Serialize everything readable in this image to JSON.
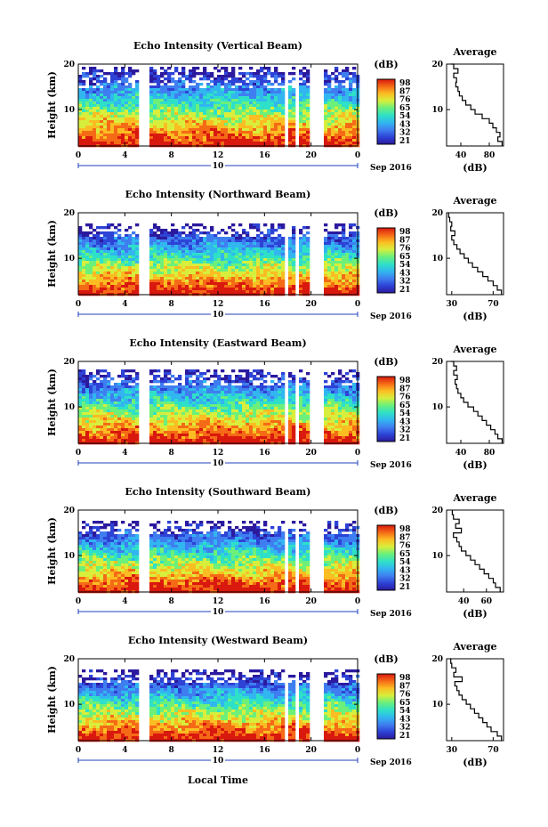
{
  "figure": {
    "xlabel_bottom": "Local Time",
    "date_label": "Sep 2016",
    "day_label": "10",
    "colorbar_unit": "(dB)",
    "colorbar_ticks": [
      "98",
      "87",
      "76",
      "65",
      "54",
      "43",
      "32",
      "21"
    ],
    "height_label": "Height (km)",
    "average_title": "Average",
    "average_xlabel": "(dB)",
    "colors": {
      "palette": [
        "#2b1a9e",
        "#2d43d6",
        "#3f7ef0",
        "#31b6f0",
        "#2ee0c8",
        "#6cf07a",
        "#d8ee3c",
        "#fbbd22",
        "#f56a16",
        "#d9180e"
      ],
      "axis": "#000000",
      "time_axis_marker": "#1f3fbf"
    }
  },
  "chart_data": [
    {
      "type": "heatmap",
      "title": "Echo Intensity (Vertical Beam)",
      "xlabel": "Local Time",
      "ylabel": "Height (km)",
      "xlim": [
        0,
        24
      ],
      "ylim": [
        2,
        20
      ],
      "xticks": [
        "0",
        "4",
        "8",
        "12",
        "16",
        "20",
        "0"
      ],
      "yticks": [
        "20",
        "10"
      ],
      "colorbar_range": [
        21,
        98
      ],
      "colorbar_ticks": [
        "98",
        "87",
        "76",
        "65",
        "54",
        "43",
        "32",
        "21"
      ],
      "data_gaps_hours": [
        [
          5.3,
          6.0
        ],
        [
          17.7,
          18.1
        ],
        [
          18.6,
          18.9
        ],
        [
          19.8,
          21.0
        ]
      ],
      "echo_top_km": 19.5,
      "average_profile": {
        "title": "Average",
        "xlabel": "(dB)",
        "xticks": [
          "40",
          "80"
        ],
        "xlim": [
          20,
          100
        ],
        "height_km": [
          2,
          3,
          4,
          5,
          6,
          7,
          8,
          9,
          10,
          11,
          12,
          13,
          14,
          15,
          16,
          17,
          18,
          19,
          20
        ],
        "db": [
          98,
          92,
          95,
          90,
          85,
          80,
          70,
          60,
          54,
          47,
          42,
          38,
          36,
          33,
          34,
          30,
          36,
          30,
          26
        ]
      }
    },
    {
      "type": "heatmap",
      "title": "Echo Intensity (Northward Beam)",
      "xlabel": "Local Time",
      "ylabel": "Height (km)",
      "xlim": [
        0,
        24
      ],
      "ylim": [
        2,
        20
      ],
      "xticks": [
        "0",
        "4",
        "8",
        "12",
        "16",
        "20",
        "0"
      ],
      "yticks": [
        "20",
        "10"
      ],
      "colorbar_range": [
        21,
        98
      ],
      "colorbar_ticks": [
        "98",
        "87",
        "76",
        "65",
        "54",
        "43",
        "32",
        "21"
      ],
      "data_gaps_hours": [
        [
          5.3,
          6.0
        ],
        [
          17.7,
          18.1
        ],
        [
          18.6,
          18.9
        ],
        [
          19.8,
          21.0
        ]
      ],
      "echo_top_km": 17.5,
      "average_profile": {
        "title": "Average",
        "xlabel": "(dB)",
        "xticks": [
          "30",
          "70"
        ],
        "xlim": [
          25,
          80
        ],
        "height_km": [
          2,
          3,
          4,
          5,
          6,
          7,
          8,
          9,
          10,
          11,
          12,
          13,
          14,
          15,
          16,
          17,
          18,
          19,
          20
        ],
        "db": [
          78,
          74,
          70,
          65,
          60,
          55,
          50,
          46,
          42,
          38,
          35,
          32,
          30,
          33,
          29,
          30,
          28,
          27,
          27
        ]
      }
    },
    {
      "type": "heatmap",
      "title": "Echo Intensity (Eastward Beam)",
      "xlabel": "Local Time",
      "ylabel": "Height (km)",
      "xlim": [
        0,
        24
      ],
      "ylim": [
        2,
        20
      ],
      "xticks": [
        "0",
        "4",
        "8",
        "12",
        "16",
        "20",
        "0"
      ],
      "yticks": [
        "20",
        "10"
      ],
      "colorbar_range": [
        21,
        98
      ],
      "colorbar_ticks": [
        "98",
        "87",
        "76",
        "65",
        "54",
        "43",
        "32",
        "21"
      ],
      "data_gaps_hours": [
        [
          5.3,
          6.0
        ],
        [
          17.7,
          18.1
        ],
        [
          18.6,
          18.9
        ],
        [
          19.8,
          21.0
        ]
      ],
      "echo_top_km": 18.5,
      "average_profile": {
        "title": "Average",
        "xlabel": "(dB)",
        "xticks": [
          "40",
          "80"
        ],
        "xlim": [
          20,
          100
        ],
        "height_km": [
          2,
          3,
          4,
          5,
          6,
          7,
          8,
          9,
          10,
          11,
          12,
          13,
          14,
          15,
          16,
          17,
          18,
          19,
          20
        ],
        "db": [
          98,
          92,
          88,
          82,
          76,
          70,
          64,
          58,
          50,
          44,
          40,
          36,
          34,
          32,
          35,
          30,
          34,
          30,
          26
        ]
      }
    },
    {
      "type": "heatmap",
      "title": "Echo Intensity (Southward Beam)",
      "xlabel": "Local Time",
      "ylabel": "Height (km)",
      "xlim": [
        0,
        24
      ],
      "ylim": [
        2,
        20
      ],
      "xticks": [
        "0",
        "4",
        "8",
        "12",
        "16",
        "20",
        "0"
      ],
      "yticks": [
        "20",
        "10"
      ],
      "colorbar_range": [
        21,
        98
      ],
      "colorbar_ticks": [
        "98",
        "87",
        "76",
        "65",
        "54",
        "43",
        "32",
        "21"
      ],
      "data_gaps_hours": [
        [
          5.3,
          6.0
        ],
        [
          17.7,
          18.1
        ],
        [
          18.6,
          18.9
        ],
        [
          19.8,
          21.0
        ]
      ],
      "echo_top_km": 17.5,
      "average_profile": {
        "title": "Average",
        "xlabel": "(dB)",
        "xticks": [
          "40",
          "60"
        ],
        "xlim": [
          25,
          75
        ],
        "height_km": [
          2,
          3,
          4,
          5,
          6,
          7,
          8,
          9,
          10,
          11,
          12,
          13,
          14,
          15,
          16,
          17,
          18,
          19,
          20
        ],
        "db": [
          72,
          68,
          66,
          62,
          58,
          54,
          50,
          46,
          42,
          38,
          36,
          34,
          31,
          38,
          33,
          36,
          31,
          30,
          30
        ]
      }
    },
    {
      "type": "heatmap",
      "title": "Echo Intensity (Westward Beam)",
      "xlabel": "Local Time",
      "ylabel": "Height (km)",
      "xlim": [
        0,
        24
      ],
      "ylim": [
        2,
        20
      ],
      "xticks": [
        "0",
        "4",
        "8",
        "12",
        "16",
        "20",
        "0"
      ],
      "yticks": [
        "20",
        "10"
      ],
      "colorbar_range": [
        21,
        98
      ],
      "colorbar_ticks": [
        "98",
        "87",
        "76",
        "65",
        "54",
        "43",
        "32",
        "21"
      ],
      "data_gaps_hours": [
        [
          5.3,
          6.0
        ],
        [
          17.7,
          18.1
        ],
        [
          18.6,
          18.9
        ],
        [
          19.8,
          21.0
        ]
      ],
      "echo_top_km": 17.5,
      "average_profile": {
        "title": "Average",
        "xlabel": "(dB)",
        "xticks": [
          "30",
          "70"
        ],
        "xlim": [
          25,
          80
        ],
        "height_km": [
          2,
          3,
          4,
          5,
          6,
          7,
          8,
          9,
          10,
          11,
          12,
          13,
          14,
          15,
          16,
          17,
          18,
          19,
          20
        ],
        "db": [
          78,
          74,
          68,
          64,
          60,
          56,
          52,
          48,
          44,
          40,
          37,
          35,
          33,
          40,
          32,
          34,
          30,
          29,
          28
        ]
      }
    }
  ]
}
